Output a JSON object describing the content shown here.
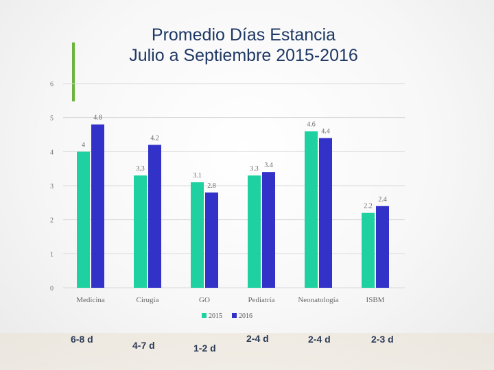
{
  "title_line1": "Promedio Días Estancia",
  "title_line2": "Julio a Septiembre 2015-2016",
  "colors": {
    "accent": "#6db33f",
    "series_2015": "#1fd1a0",
    "series_2016": "#3232c8",
    "title": "#1f3864"
  },
  "chart_data": {
    "type": "bar",
    "categories": [
      "Medicina",
      "Cirugía",
      "GO",
      "Pediatría",
      "Neonatología",
      "ISBM"
    ],
    "series": [
      {
        "name": "2015",
        "values": [
          4,
          3.3,
          3.1,
          3.3,
          4.6,
          2.2
        ]
      },
      {
        "name": "2016",
        "values": [
          4.8,
          4.2,
          2.8,
          3.4,
          4.4,
          2.4
        ]
      }
    ],
    "ylim": [
      0,
      6
    ],
    "yticks": [
      0,
      1,
      2,
      3,
      4,
      5,
      6
    ],
    "grid": true,
    "legend": "bottom"
  },
  "expected_stays": [
    "6-8 d",
    "4-7 d",
    "1-2 d",
    "2-4 d",
    "2-4 d",
    "2-3 d"
  ]
}
